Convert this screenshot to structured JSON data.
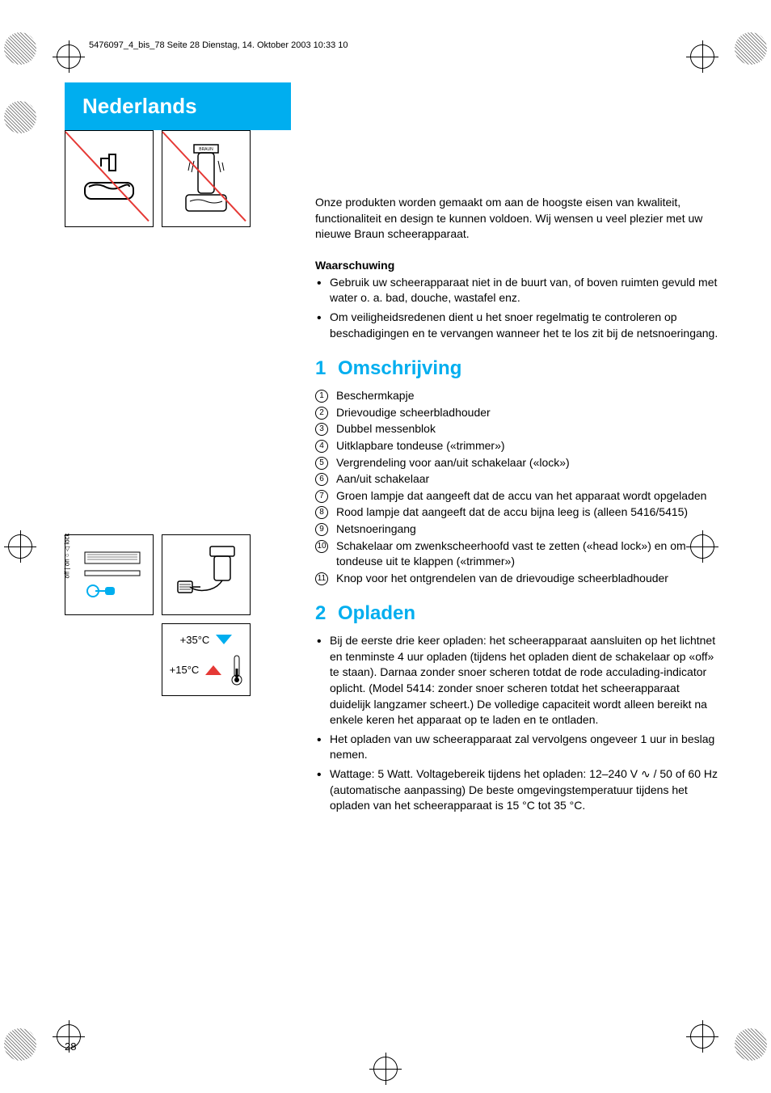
{
  "header_line": "5476097_4_bis_78  Seite 28  Dienstag, 14. Oktober 2003  10:33 10",
  "title": "Nederlands",
  "intro": "Onze produkten worden gemaakt om aan de hoogste eisen van kwaliteit, functionaliteit en design te kunnen voldoen. Wij wensen u veel plezier met uw nieuwe Braun scheerapparaat.",
  "warning_heading": "Waarschuwing",
  "warnings": [
    "Gebruik uw scheerapparaat niet in de buurt van, of boven ruimten gevuld met water o. a. bad, douche, wastafel enz.",
    "Om veiligheidsredenen dient u het snoer regelmatig te controleren op beschadigingen en te vervangen wanneer het te los zit bij de netsnoeringang."
  ],
  "section1": {
    "num": "1",
    "title": "Omschrijving",
    "items": [
      "Beschermkapje",
      "Drievoudige scheerbladhouder",
      "Dubbel messenblok",
      "Uitklapbare tondeuse («trimmer»)",
      "Vergrendeling voor aan/uit schakelaar («lock»)",
      "Aan/uit schakelaar",
      "Groen lampje dat aangeeft dat de accu van het apparaat wordt opgeladen",
      "Rood lampje dat aangeeft dat de accu bijna leeg is (alleen 5416/5415)",
      "Netsnoeringang",
      "Schakelaar om zwenkscheerhoofd vast te zetten («head lock») en om tondeuse uit te klappen («trimmer»)",
      "Knop voor het ontgrendelen van de drievoudige scheerbladhouder"
    ]
  },
  "section2": {
    "num": "2",
    "title": "Opladen",
    "bullets": [
      "Bij de eerste drie keer opladen: het scheerapparaat aansluiten op het lichtnet en tenminste 4 uur opladen (tijdens het opladen dient de schakelaar op «off» te staan). Darnaa zonder snoer scheren totdat de rode acculading-indicator oplicht. (Model 5414: zonder snoer scheren totdat het scheerapparaat duidelijk langzamer scheert.) De volledige capaciteit wordt alleen bereikt na enkele keren het apparaat op te laden en te ontladen.",
      "Het opladen van uw scheerapparaat zal vervolgens ongeveer 1 uur in beslag nemen.",
      "Wattage: 5 Watt. Voltagebereik tijdens het opladen: 12–240 V ∿ / 50 of 60 Hz (automatische aanpassing) De beste omgevingstemperatuur tijdens het opladen van het scheerapparaat is 15 °C tot 35 °C."
    ]
  },
  "temp": {
    "high": "+35°C",
    "low": "+15°C"
  },
  "switch_labels": "off | on  ○  ◁ lock",
  "page_number": "28",
  "colors": {
    "accent_blue": "#00aeef",
    "accent_red": "#e53935"
  }
}
